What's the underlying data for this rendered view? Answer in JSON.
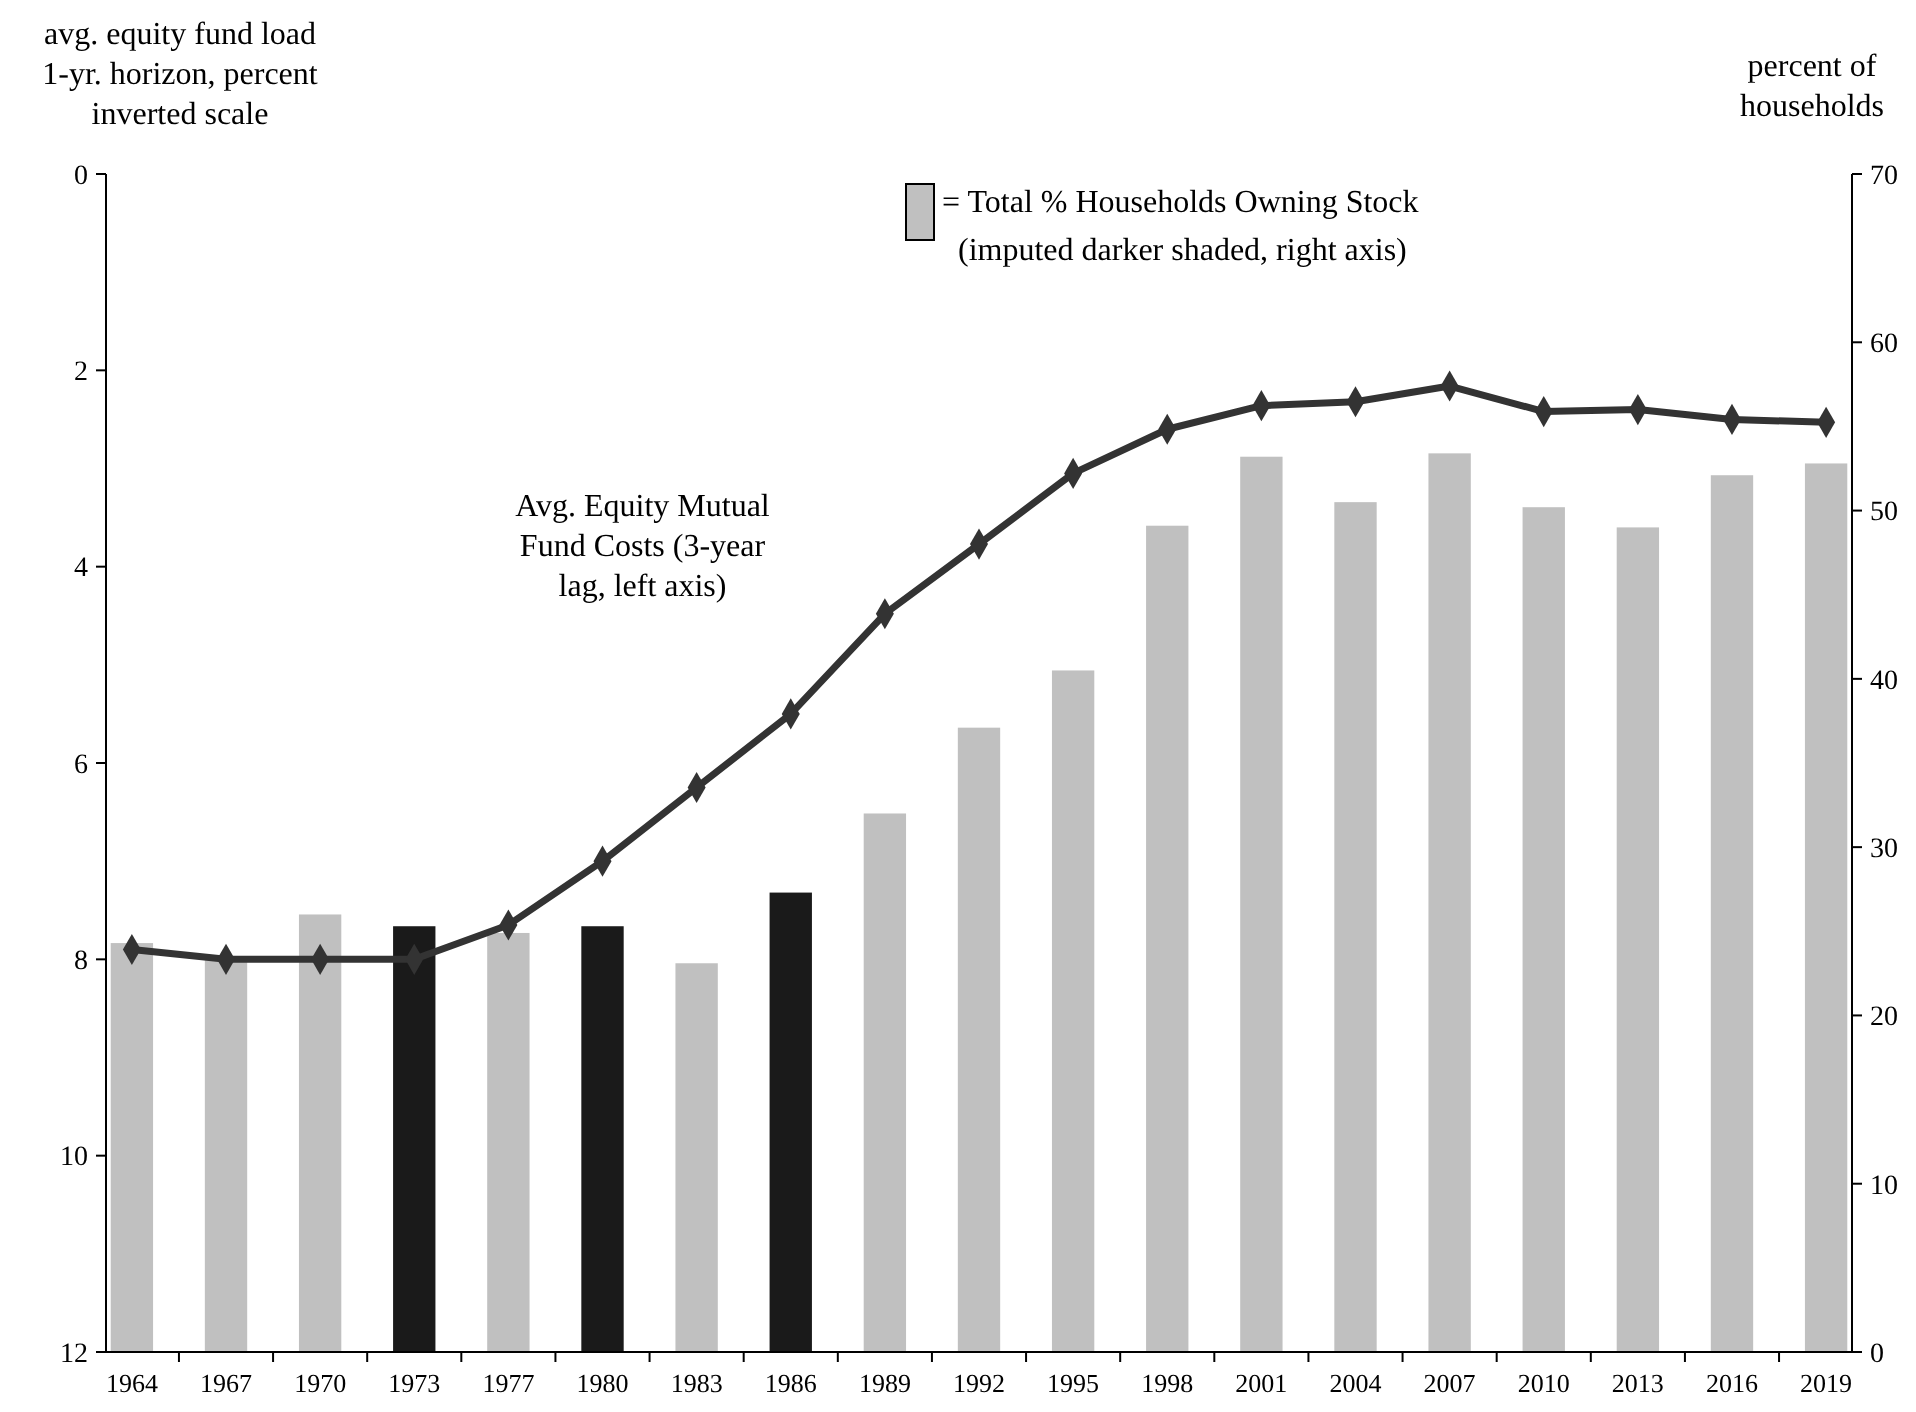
{
  "chart_data": {
    "type": "bar",
    "categories": [
      "1964",
      "1967",
      "1970",
      "1973",
      "1977",
      "1980",
      "1983",
      "1986",
      "1989",
      "1992",
      "1995",
      "1998",
      "2001",
      "2004",
      "2007",
      "2010",
      "2013",
      "2016",
      "2019"
    ],
    "ylabel": "avg. equity fund load 1-yr. horizon, percent inverted scale",
    "y2label": "percent of households",
    "ylim": [
      12,
      0
    ],
    "yticks": [
      0,
      2,
      4,
      6,
      8,
      10,
      12
    ],
    "y2lim": [
      0,
      70
    ],
    "y2ticks": [
      0,
      10,
      20,
      30,
      40,
      50,
      60,
      70
    ],
    "grid": false,
    "legend": "top right",
    "annotations": [
      "(imputed darker shaded, right axis)"
    ],
    "series": [
      {
        "axis": "y2",
        "name": "= Total % Households Owning Stock",
        "color": "#c0c0c0",
        "colors": [
          "#c0c0c0",
          "#c0c0c0",
          "#c0c0c0",
          "#1a1a1a",
          "#c0c0c0",
          "#1a1a1a",
          "#c0c0c0",
          "#1a1a1a",
          "#c0c0c0",
          "#c0c0c0",
          "#c0c0c0",
          "#c0c0c0",
          "#c0c0c0",
          "#c0c0c0",
          "#c0c0c0",
          "#c0c0c0",
          "#c0c0c0",
          "#c0c0c0",
          "#c0c0c0"
        ],
        "values": [
          24.3,
          23.3,
          26.0,
          25.3,
          24.9,
          25.3,
          23.1,
          27.3,
          32.0,
          37.1,
          40.5,
          49.1,
          53.2,
          50.5,
          53.4,
          50.2,
          49.0,
          52.1,
          52.8
        ]
      },
      {
        "type": "line",
        "axis": "y",
        "name": "Avg. Equity Mutual Fund Costs (3-year lag, left axis)",
        "color": "#333333",
        "marker": "diamond",
        "line_style": "solid",
        "values": [
          7.9,
          8.0,
          8.0,
          8.0,
          7.65,
          7.0,
          6.25,
          5.5,
          4.48,
          3.77,
          3.05,
          2.6,
          2.36,
          2.32,
          2.16,
          2.42,
          2.4,
          2.5,
          2.53
        ]
      }
    ]
  }
}
